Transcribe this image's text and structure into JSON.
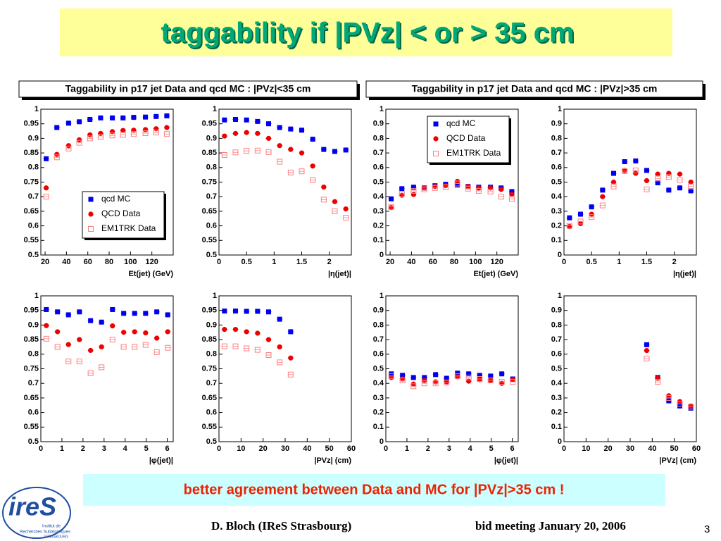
{
  "slide": {
    "title": "taggability if |PVz| < or > 35 cm",
    "headers": [
      "Taggability in p17 jet Data and qcd MC : |PVz|<35 cm",
      "Taggability in p17 jet Data and qcd MC : |PVz|>35 cm"
    ],
    "conclusion": "better agreement between Data and MC for |PVz|>35 cm !",
    "author": "D. Bloch  (IReS Strasbourg)",
    "meeting": "bid meeting  January 20, 2006",
    "page": "3",
    "logo": "ireS",
    "logo_caption": [
      "Institut de",
      "Recherches Subatomiques",
      "STRASBOURG"
    ]
  },
  "chart_data": [
    {
      "type": "scatter",
      "xlabel": "Et(jet) (GeV)",
      "xlim": [
        16,
        140
      ],
      "xticks": [
        20,
        40,
        60,
        80,
        100,
        120
      ],
      "ylim": [
        0.5,
        1
      ],
      "yticks": [
        0.5,
        0.55,
        0.6,
        0.65,
        0.7,
        0.75,
        0.8,
        0.85,
        0.9,
        0.95,
        1
      ],
      "legend": "bottom-right",
      "x": [
        21,
        31,
        42,
        52,
        62,
        72,
        83,
        93,
        103,
        114,
        124,
        134
      ],
      "series": [
        {
          "name": "qcd MC",
          "color": "#0000ee",
          "marker": "square",
          "values": [
            0.83,
            0.937,
            0.952,
            0.957,
            0.965,
            0.97,
            0.97,
            0.97,
            0.972,
            0.973,
            0.975,
            0.977
          ]
        },
        {
          "name": "QCD Data",
          "color": "#ee0000",
          "marker": "circle",
          "values": [
            0.73,
            0.845,
            0.875,
            0.895,
            0.912,
            0.917,
            0.923,
            0.927,
            0.928,
            0.93,
            0.933,
            0.937
          ]
        },
        {
          "name": "EM1TRK Data",
          "color": "#ff7f7f",
          "marker": "open-square",
          "values": [
            0.7,
            0.835,
            0.865,
            0.885,
            0.9,
            0.905,
            0.91,
            0.912,
            0.915,
            0.918,
            0.92,
            0.915
          ]
        }
      ]
    },
    {
      "type": "scatter",
      "xlabel": "|η(jet)|",
      "xlim": [
        0,
        2.4
      ],
      "xticks": [
        0,
        0.5,
        1,
        1.5,
        2
      ],
      "ylim": [
        0.5,
        1
      ],
      "yticks": [
        0.5,
        0.55,
        0.6,
        0.65,
        0.7,
        0.75,
        0.8,
        0.85,
        0.9,
        0.95,
        1
      ],
      "x": [
        0.1,
        0.3,
        0.5,
        0.7,
        0.9,
        1.1,
        1.3,
        1.5,
        1.7,
        1.9,
        2.1,
        2.3
      ],
      "series": [
        {
          "name": "qcd MC",
          "color": "#0000ee",
          "marker": "square",
          "values": [
            0.963,
            0.965,
            0.963,
            0.958,
            0.95,
            0.937,
            0.932,
            0.928,
            0.897,
            0.862,
            0.855,
            0.86
          ]
        },
        {
          "name": "QCD Data",
          "color": "#ee0000",
          "marker": "circle",
          "values": [
            0.908,
            0.917,
            0.92,
            0.917,
            0.9,
            0.875,
            0.862,
            0.85,
            0.805,
            0.733,
            0.683,
            0.658
          ]
        },
        {
          "name": "EM1TRK Data",
          "color": "#ff7f7f",
          "marker": "open-square",
          "values": [
            0.843,
            0.852,
            0.857,
            0.858,
            0.853,
            0.82,
            0.783,
            0.787,
            0.757,
            0.69,
            0.65,
            0.628
          ]
        }
      ]
    },
    {
      "type": "scatter",
      "xlabel": "Et(jet) (GeV)",
      "xlim": [
        16,
        140
      ],
      "xticks": [
        20,
        40,
        60,
        80,
        100,
        120
      ],
      "ylim": [
        0,
        1
      ],
      "yticks": [
        0,
        0.1,
        0.2,
        0.3,
        0.4,
        0.5,
        0.6,
        0.7,
        0.8,
        0.9,
        1
      ],
      "legend": "top-right",
      "x": [
        21,
        31,
        42,
        52,
        62,
        72,
        83,
        93,
        103,
        114,
        124,
        134
      ],
      "series": [
        {
          "name": "qcd MC",
          "color": "#0000ee",
          "marker": "square",
          "values": [
            0.385,
            0.455,
            0.465,
            0.46,
            0.475,
            0.485,
            0.48,
            0.47,
            0.465,
            0.465,
            0.46,
            0.435
          ]
        },
        {
          "name": "QCD Data",
          "color": "#ee0000",
          "marker": "circle",
          "values": [
            0.325,
            0.41,
            0.415,
            0.46,
            0.47,
            0.475,
            0.505,
            0.47,
            0.46,
            0.46,
            0.45,
            0.415
          ]
        },
        {
          "name": "EM1TRK Data",
          "color": "#ff7f7f",
          "marker": "open-square",
          "values": [
            0.33,
            0.42,
            0.44,
            0.45,
            0.46,
            0.465,
            0.49,
            0.455,
            0.44,
            0.435,
            0.4,
            0.385
          ]
        }
      ]
    },
    {
      "type": "scatter",
      "xlabel": "|η(jet)|",
      "xlim": [
        0,
        2.4
      ],
      "xticks": [
        0,
        0.5,
        1,
        1.5,
        2
      ],
      "ylim": [
        0,
        1
      ],
      "yticks": [
        0,
        0.1,
        0.2,
        0.3,
        0.4,
        0.5,
        0.6,
        0.7,
        0.8,
        0.9,
        1
      ],
      "x": [
        0.1,
        0.3,
        0.5,
        0.7,
        0.9,
        1.1,
        1.3,
        1.5,
        1.7,
        1.9,
        2.1,
        2.3
      ],
      "series": [
        {
          "name": "qcd MC",
          "color": "#0000ee",
          "marker": "square",
          "values": [
            0.255,
            0.28,
            0.33,
            0.445,
            0.56,
            0.64,
            0.645,
            0.58,
            0.495,
            0.445,
            0.46,
            0.44
          ]
        },
        {
          "name": "QCD Data",
          "color": "#ee0000",
          "marker": "circle",
          "values": [
            0.195,
            0.215,
            0.28,
            0.4,
            0.5,
            0.58,
            0.56,
            0.51,
            0.555,
            0.56,
            0.555,
            0.5
          ]
        },
        {
          "name": "EM1TRK Data",
          "color": "#ff7f7f",
          "marker": "open-square",
          "values": [
            0.2,
            0.23,
            0.26,
            0.34,
            0.47,
            0.575,
            0.58,
            0.45,
            0.525,
            0.535,
            0.515,
            0.47
          ]
        }
      ]
    },
    {
      "type": "scatter",
      "xlabel": "|φ(jet)|",
      "xlim": [
        0,
        6.28
      ],
      "xticks": [
        0,
        1,
        2,
        3,
        4,
        5,
        6
      ],
      "ylim": [
        0.5,
        1
      ],
      "yticks": [
        0.5,
        0.55,
        0.6,
        0.65,
        0.7,
        0.75,
        0.8,
        0.85,
        0.9,
        0.95,
        1
      ],
      "x": [
        0.26,
        0.79,
        1.31,
        1.83,
        2.36,
        2.88,
        3.4,
        3.93,
        4.45,
        4.97,
        5.5,
        6.02
      ],
      "series": [
        {
          "name": "qcd MC",
          "color": "#0000ee",
          "marker": "square",
          "values": [
            0.953,
            0.945,
            0.935,
            0.945,
            0.915,
            0.91,
            0.953,
            0.94,
            0.94,
            0.94,
            0.945,
            0.935
          ]
        },
        {
          "name": "QCD Data",
          "color": "#ee0000",
          "marker": "circle",
          "values": [
            0.898,
            0.877,
            0.833,
            0.85,
            0.813,
            0.825,
            0.897,
            0.875,
            0.877,
            0.873,
            0.855,
            0.877
          ]
        },
        {
          "name": "EM1TRK Data",
          "color": "#ff7f7f",
          "marker": "open-square",
          "values": [
            0.853,
            0.825,
            0.775,
            0.775,
            0.735,
            0.755,
            0.85,
            0.825,
            0.825,
            0.832,
            0.807,
            0.822
          ]
        }
      ]
    },
    {
      "type": "scatter",
      "xlabel": "|PVz| (cm)",
      "xlim": [
        0,
        60
      ],
      "xticks": [
        0,
        10,
        20,
        30,
        40,
        50,
        60
      ],
      "ylim": [
        0.5,
        1
      ],
      "yticks": [
        0.5,
        0.55,
        0.6,
        0.65,
        0.7,
        0.75,
        0.8,
        0.85,
        0.9,
        0.95,
        1
      ],
      "x": [
        2.5,
        7.5,
        12.5,
        17.5,
        22.5,
        27.5,
        32.5
      ],
      "series": [
        {
          "name": "qcd MC",
          "color": "#0000ee",
          "marker": "square",
          "values": [
            0.948,
            0.948,
            0.947,
            0.947,
            0.945,
            0.92,
            0.877
          ]
        },
        {
          "name": "QCD Data",
          "color": "#ee0000",
          "marker": "circle",
          "values": [
            0.885,
            0.885,
            0.877,
            0.872,
            0.85,
            0.825,
            0.787
          ]
        },
        {
          "name": "EM1TRK Data",
          "color": "#ff7f7f",
          "marker": "open-square",
          "values": [
            0.827,
            0.827,
            0.82,
            0.815,
            0.797,
            0.772,
            0.73
          ]
        }
      ]
    },
    {
      "type": "scatter",
      "xlabel": "|φ(jet)|",
      "xlim": [
        0,
        6.28
      ],
      "xticks": [
        0,
        1,
        2,
        3,
        4,
        5,
        6
      ],
      "ylim": [
        0,
        1
      ],
      "yticks": [
        0,
        0.1,
        0.2,
        0.3,
        0.4,
        0.5,
        0.6,
        0.7,
        0.8,
        0.9,
        1
      ],
      "x": [
        0.26,
        0.79,
        1.31,
        1.83,
        2.36,
        2.88,
        3.4,
        3.93,
        4.45,
        4.97,
        5.5,
        6.02
      ],
      "series": [
        {
          "name": "qcd MC",
          "color": "#0000ee",
          "marker": "square",
          "values": [
            0.465,
            0.455,
            0.44,
            0.44,
            0.46,
            0.435,
            0.47,
            0.465,
            0.455,
            0.45,
            0.465,
            0.43
          ]
        },
        {
          "name": "QCD Data",
          "color": "#ee0000",
          "marker": "circle",
          "values": [
            0.44,
            0.43,
            0.395,
            0.42,
            0.41,
            0.41,
            0.445,
            0.415,
            0.425,
            0.42,
            0.4,
            0.425
          ]
        },
        {
          "name": "EM1TRK Data",
          "color": "#ff7f7f",
          "marker": "open-square",
          "values": [
            0.45,
            0.42,
            0.38,
            0.4,
            0.4,
            0.405,
            0.45,
            0.44,
            0.43,
            0.42,
            0.41,
            0.41
          ]
        }
      ]
    },
    {
      "type": "scatter",
      "xlabel": "|PVz| (cm)",
      "xlim": [
        0,
        60
      ],
      "xticks": [
        0,
        10,
        20,
        30,
        40,
        50,
        60
      ],
      "ylim": [
        0,
        1
      ],
      "yticks": [
        0,
        0.1,
        0.2,
        0.3,
        0.4,
        0.5,
        0.6,
        0.7,
        0.8,
        0.9,
        1
      ],
      "x": [
        37.5,
        42.5,
        47.5,
        52.5,
        57.5
      ],
      "series": [
        {
          "name": "qcd MC",
          "color": "#0000ee",
          "marker": "square",
          "values": [
            0.665,
            0.44,
            0.28,
            0.245,
            0.23
          ]
        },
        {
          "name": "QCD Data",
          "color": "#ee0000",
          "marker": "circle",
          "values": [
            0.625,
            0.435,
            0.315,
            0.275,
            0.245
          ]
        },
        {
          "name": "EM1TRK Data",
          "color": "#ff7f7f",
          "marker": "open-square",
          "values": [
            0.57,
            0.41,
            0.3,
            0.26,
            0.24
          ]
        }
      ]
    }
  ]
}
